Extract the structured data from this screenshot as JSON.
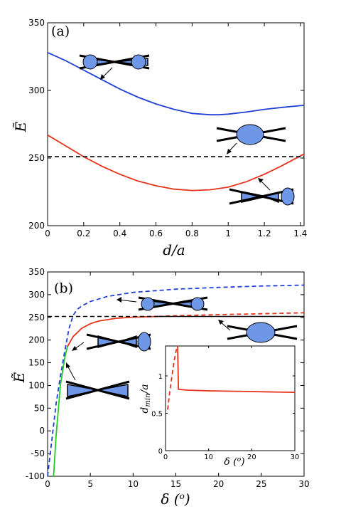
{
  "chart_data": [
    {
      "type": "line",
      "panel_label": "(a)",
      "xlabel": "d/a",
      "ylabel": "Ẽ",
      "xlim": [
        0,
        1.42
      ],
      "ylim": [
        200,
        350
      ],
      "xticks": [
        0,
        0.2,
        0.4,
        0.6,
        0.8,
        1,
        1.2,
        1.4
      ],
      "xtick_labels": [
        "0",
        "0.2",
        "0.4",
        "0.6",
        "0.8",
        "1",
        "1.2",
        "1.4"
      ],
      "yticks": [
        200,
        250,
        300,
        350
      ],
      "ytick_labels": [
        "200",
        "250",
        "300",
        "350"
      ],
      "series": [
        {
          "color": "#1f3fd6",
          "style": "solid",
          "x": [
            0,
            0.1,
            0.2,
            0.3,
            0.4,
            0.5,
            0.6,
            0.7,
            0.8,
            0.9,
            0.95,
            1.0,
            1.1,
            1.2,
            1.3,
            1.42
          ],
          "y": [
            328,
            322,
            315,
            308,
            301,
            295,
            290,
            286,
            283,
            282,
            282,
            282.5,
            284,
            286,
            287.5,
            289
          ]
        },
        {
          "color": "#e8311a",
          "style": "solid",
          "x": [
            0,
            0.1,
            0.2,
            0.3,
            0.4,
            0.5,
            0.6,
            0.7,
            0.8,
            0.9,
            1.0,
            1.1,
            1.2,
            1.3,
            1.42
          ],
          "y": [
            267,
            259,
            251,
            244,
            238,
            233,
            229.5,
            227,
            226,
            226.5,
            228.5,
            232.5,
            238,
            244.5,
            253
          ]
        },
        {
          "color": "#000000",
          "style": "dashed",
          "x": [
            0,
            1.42
          ],
          "y": [
            251,
            251
          ]
        }
      ]
    },
    {
      "type": "line",
      "panel_label": "(b)",
      "xlabel": "δ (o)",
      "ylabel": "Ẽ",
      "xlim": [
        0,
        30
      ],
      "ylim": [
        -100,
        350
      ],
      "xticks": [
        0,
        5,
        10,
        15,
        20,
        25,
        30
      ],
      "xtick_labels": [
        "0",
        "5",
        "10",
        "15",
        "20",
        "25",
        "30"
      ],
      "yticks": [
        -100,
        -50,
        0,
        50,
        100,
        150,
        200,
        250,
        300,
        350
      ],
      "ytick_labels": [
        "-100",
        "-50",
        "0",
        "50",
        "100",
        "150",
        "200",
        "250",
        "300",
        "350"
      ],
      "series": [
        {
          "color": "#1f3fd6",
          "style": "dashed",
          "x": [
            0,
            0.5,
            1,
            1.5,
            2,
            2.5,
            3,
            3.5,
            4,
            5,
            7,
            10,
            15,
            20,
            25,
            30
          ],
          "y": [
            -100,
            -20,
            60,
            120,
            175,
            225,
            255,
            268,
            275,
            285,
            296,
            305,
            312,
            316,
            319,
            321
          ]
        },
        {
          "color": "#e8311a",
          "style": "solid",
          "x": [
            2.3,
            3,
            4,
            5,
            6,
            8,
            10,
            12,
            13
          ],
          "y": [
            185,
            208,
            226,
            236,
            242,
            248,
            250.5,
            251.5,
            252
          ]
        },
        {
          "color": "#e8311a",
          "style": "dashed",
          "x": [
            13,
            15,
            20,
            25,
            30
          ],
          "y": [
            252,
            253.5,
            256,
            258,
            260
          ]
        },
        {
          "color": "#22cc22",
          "style": "solid",
          "x": [
            0.7,
            1,
            1.5,
            2,
            2.3
          ],
          "y": [
            -100,
            -10,
            100,
            160,
            185
          ]
        },
        {
          "color": "#000000",
          "style": "dashed",
          "x": [
            0,
            13
          ],
          "y": [
            252,
            252
          ]
        },
        {
          "color": "#000000",
          "style": "solid",
          "x": [
            13,
            30
          ],
          "y": [
            252,
            252
          ]
        }
      ],
      "inset": {
        "xlabel": "δ (o)",
        "ylabel": "dmin/a",
        "xlim": [
          0,
          30
        ],
        "ylim": [
          0,
          1.4
        ],
        "xticks": [
          0,
          10,
          20,
          30
        ],
        "xtick_labels": [
          "0",
          "10",
          "20",
          "30"
        ],
        "yticks": [
          0,
          0.5,
          1
        ],
        "ytick_labels": [
          "0",
          "0.5",
          "1"
        ],
        "series": [
          {
            "color": "#e8311a",
            "style": "dashed",
            "x": [
              0.5,
              1,
              1.5,
              2,
              2.5,
              2.8
            ],
            "y": [
              0.55,
              0.8,
              1.0,
              1.2,
              1.35,
              1.42
            ]
          },
          {
            "color": "#e8311a",
            "style": "solid",
            "x": [
              2.8,
              3,
              5,
              10,
              15,
              20,
              25,
              30
            ],
            "y": [
              1.42,
              0.82,
              0.81,
              0.8,
              0.795,
              0.79,
              0.785,
              0.78
            ]
          }
        ]
      }
    }
  ]
}
